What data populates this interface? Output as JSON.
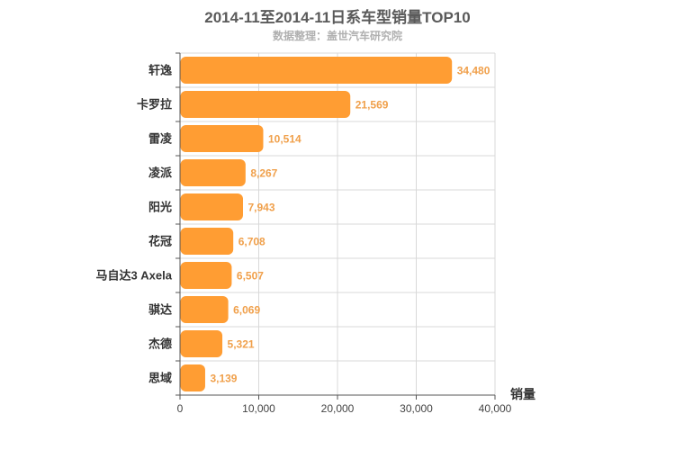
{
  "chart_data": {
    "type": "bar",
    "orientation": "horizontal",
    "title": "2014-11至2014-11日系车型销量TOP10",
    "subtitle": "数据整理：盖世汽车研究院",
    "xlabel": "销量",
    "ylabel": "",
    "categories": [
      "轩逸",
      "卡罗拉",
      "雷凌",
      "凌派",
      "阳光",
      "花冠",
      "马自达3 Axela",
      "骐达",
      "杰德",
      "思域"
    ],
    "values": [
      34480,
      21569,
      10514,
      8267,
      7943,
      6708,
      6507,
      6069,
      5321,
      3139
    ],
    "value_labels": [
      "34,480",
      "21,569",
      "10,514",
      "8,267",
      "7,943",
      "6,708",
      "6,507",
      "6,069",
      "5,321",
      "3,139"
    ],
    "xlim": [
      0,
      40000
    ],
    "xticks": [
      0,
      10000,
      20000,
      30000,
      40000
    ],
    "xtick_labels": [
      "0",
      "10,000",
      "20,000",
      "30,000",
      "40,000"
    ],
    "grid": true,
    "colors": {
      "bar": "#ff9d33",
      "value_label": "#f0a04b",
      "grid": "#d8d8d8",
      "axis": "#555555"
    }
  }
}
